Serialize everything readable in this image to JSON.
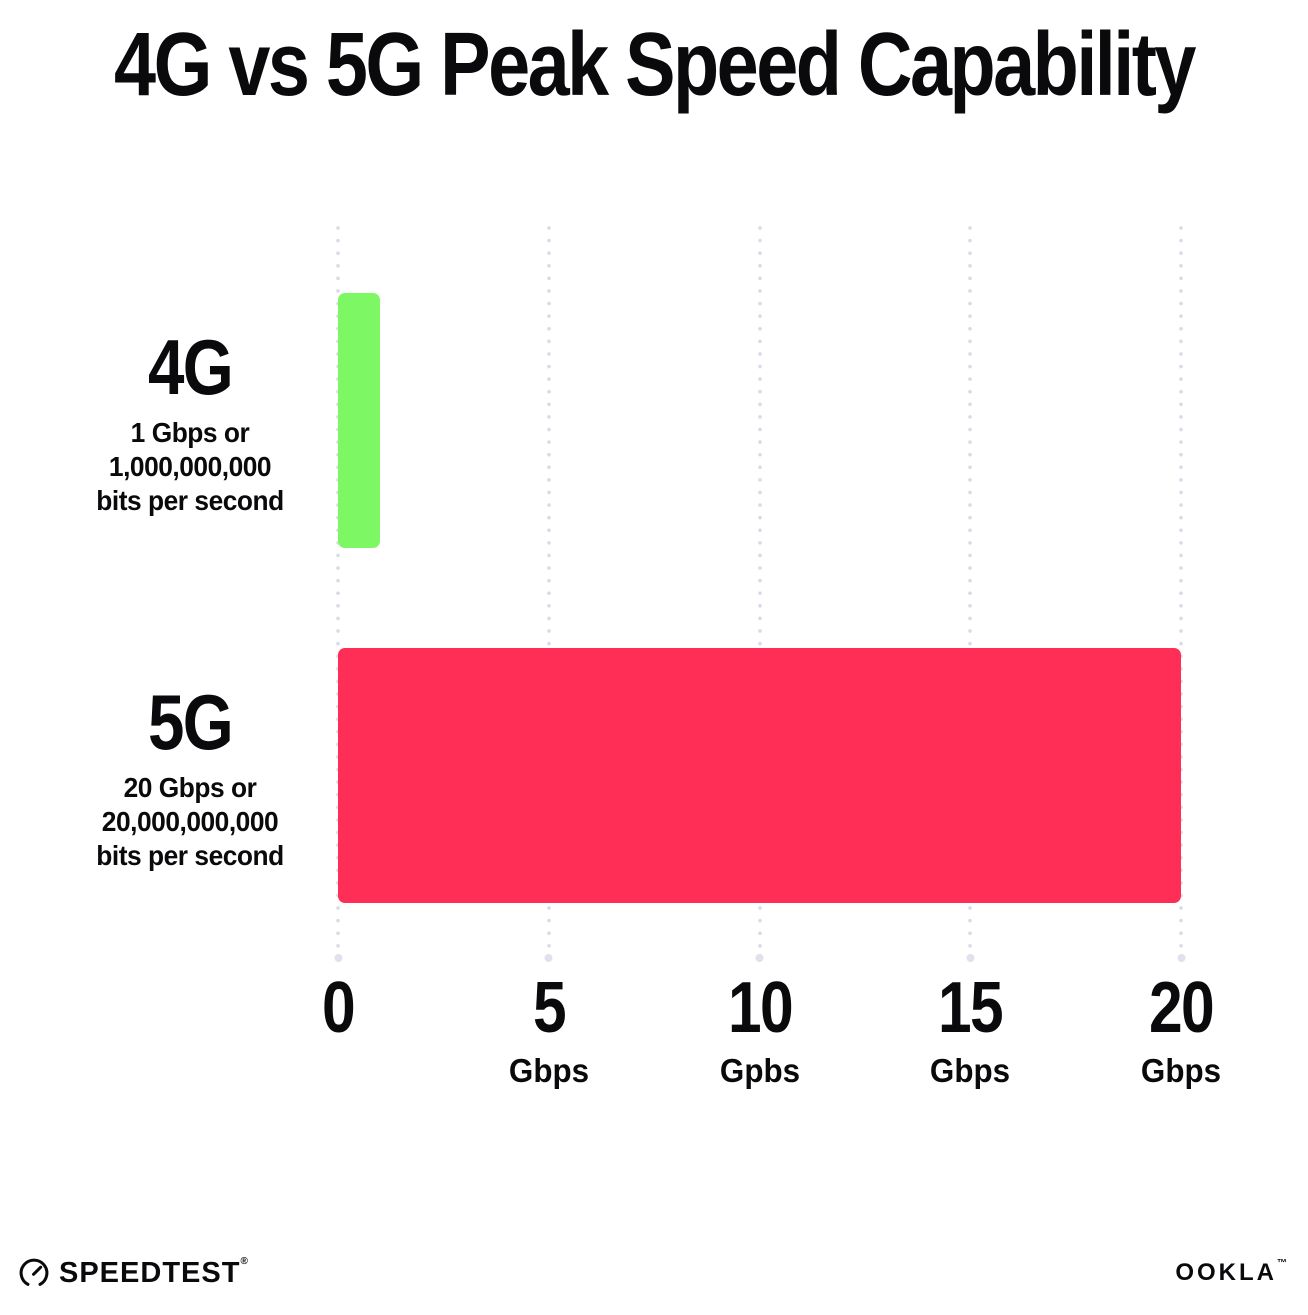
{
  "chart_data": {
    "type": "bar",
    "orientation": "horizontal",
    "title": "4G vs 5G Peak Speed Capability",
    "xlabel": "",
    "ylabel": "",
    "xlim": [
      0,
      20
    ],
    "grid": "dotted vertical gridlines at each x tick",
    "legend": "none",
    "bars": [
      {
        "label": "4G",
        "value": 1,
        "color": "#7DF764",
        "sublabel_lines": [
          "1 Gbps or",
          "1,000,000,000",
          "bits per second"
        ]
      },
      {
        "label": "5G",
        "value": 20,
        "color": "#FF2E56",
        "sublabel_lines": [
          "20 Gbps or",
          "20,000,000,000",
          "bits per second"
        ]
      }
    ],
    "x_ticks": [
      {
        "value": "0",
        "unit": ""
      },
      {
        "value": "5",
        "unit": "Gbps"
      },
      {
        "value": "10",
        "unit": "Gpbs"
      },
      {
        "value": "15",
        "unit": "Gbps"
      },
      {
        "value": "20",
        "unit": "Gbps"
      }
    ]
  },
  "footer": {
    "speedtest_label": "SPEEDTEST",
    "speedtest_trademark": "®",
    "ookla_label": "OOKLA",
    "ookla_trademark": "™"
  },
  "colors": {
    "background": "#FFFFFF",
    "text": "#0A0A0C",
    "bar_4g_green": "#7DF764",
    "bar_5g_pink": "#FF2E56",
    "grid_dot": "#D9DBE7"
  }
}
